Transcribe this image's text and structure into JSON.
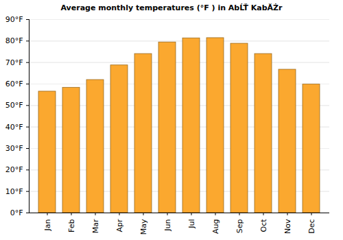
{
  "chart_data": {
    "type": "bar",
    "title": "Average monthly temperatures (°F ) in AbĹŤ KabĂŻr",
    "categories": [
      "Jan",
      "Feb",
      "Mar",
      "Apr",
      "May",
      "Jun",
      "Jul",
      "Aug",
      "Sep",
      "Oct",
      "Nov",
      "Dec"
    ],
    "values": [
      56.5,
      58.3,
      61.9,
      68.7,
      74.0,
      79.4,
      81.3,
      81.4,
      78.8,
      74.0,
      66.7,
      59.8
    ],
    "color": "#fba82f",
    "ylim": [
      0,
      90
    ],
    "yticks": [
      {
        "value": 0,
        "label": "0°F"
      },
      {
        "value": 10,
        "label": "10°F"
      },
      {
        "value": 20,
        "label": "20°F"
      },
      {
        "value": 30,
        "label": "30°F"
      },
      {
        "value": 40,
        "label": "40°F"
      },
      {
        "value": 50,
        "label": "50°F"
      },
      {
        "value": 60,
        "label": "60°F"
      },
      {
        "value": 70,
        "label": "70°F"
      },
      {
        "value": 80,
        "label": "80°F"
      },
      {
        "value": 90,
        "label": "90°F"
      }
    ],
    "grid": true
  }
}
